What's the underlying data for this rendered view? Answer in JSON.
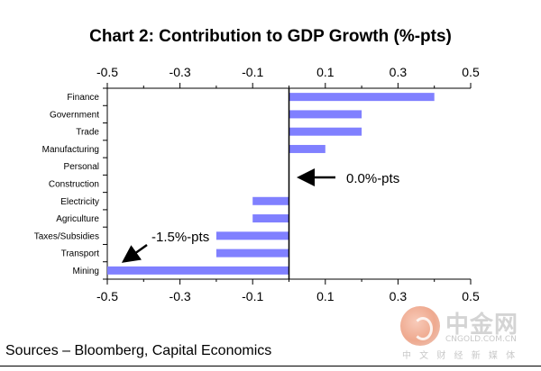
{
  "chart_data": {
    "type": "bar",
    "orientation": "horizontal",
    "title": "Chart 2: Contribution to GDP Growth (%-pts)",
    "categories": [
      "Finance",
      "Government",
      "Trade",
      "Manufacturing",
      "Personal",
      "Construction",
      "Electricity",
      "Agriculture",
      "Taxes/Subsidies",
      "Transport",
      "Mining"
    ],
    "values": [
      0.4,
      0.2,
      0.2,
      0.1,
      0.0,
      0.0,
      -0.1,
      -0.1,
      -0.2,
      -0.2,
      -0.5
    ],
    "xlim": [
      -0.5,
      0.5
    ],
    "xticks": [
      "-0.5",
      "-0.3",
      "-0.1",
      "0.1",
      "0.3",
      "0.5"
    ],
    "xtick_values": [
      -0.5,
      -0.3,
      -0.1,
      0.1,
      0.3,
      0.5
    ],
    "bar_color": "#8080ff",
    "grid": false,
    "annotations": [
      {
        "text": "0.0%-pts",
        "arrow_target": "zero-line"
      },
      {
        "text": "-1.5%-pts",
        "arrow_target": "mining-bar-end"
      }
    ]
  },
  "source": "Sources – Bloomberg, Capital Economics",
  "watermark": {
    "name": "中金网",
    "domain": "CNGOLD.COM.CN",
    "slogan": "中 文 财 经 新 媒 体"
  }
}
